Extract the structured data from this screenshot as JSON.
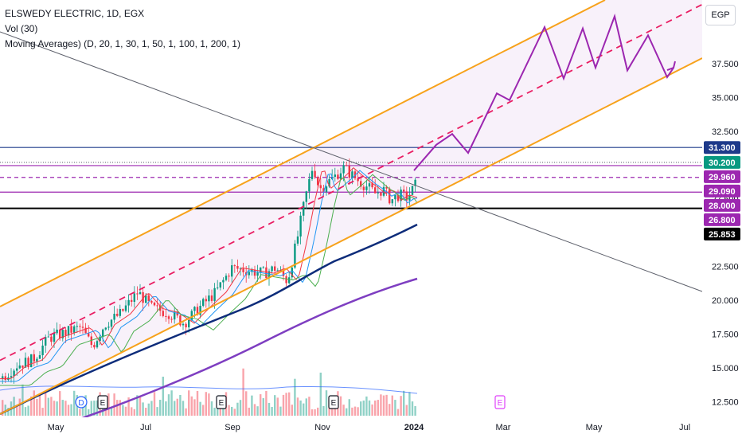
{
  "legend": {
    "symbol_line": "ELSWEDY ELECTRIC, 1D, EGX",
    "vol_line": "Vol (30)",
    "ma_line": "Moving Averages) (D, 20, 1, 30, 1, 50, 1, 100, 1, 200, 1)"
  },
  "currency_button": "EGP",
  "chart_data": {
    "type": "candlestick",
    "symbol": "ELSWEDY ELECTRIC",
    "interval": "1D",
    "exchange": "EGX",
    "currency": "EGP",
    "y_ticks": [
      12.5,
      15,
      17.5,
      20,
      22.5,
      25,
      27.5,
      30,
      32.5,
      35,
      37.5
    ],
    "y_tick_labels": [
      "12.500",
      "15.000",
      "17.500",
      "20.000",
      "22.500",
      "25.000",
      "27.500",
      "30.000",
      "32.500",
      "35.000",
      "37.500"
    ],
    "ylim": [
      11.7,
      41.5
    ],
    "x_labels": [
      "May",
      "Jul",
      "Sep",
      "Nov",
      "2024",
      "Mar",
      "May",
      "Jul"
    ],
    "price_tags": [
      {
        "value": 31.3,
        "label": "31.300",
        "color": "#1e3a8a"
      },
      {
        "value": 30.2,
        "label": "30.200",
        "color": "#089981"
      },
      {
        "value": 29.96,
        "label": "29.960",
        "color": "#9c27b0"
      },
      {
        "value": 29.09,
        "label": "29.090",
        "color": "#9c27b0"
      },
      {
        "value": 28.0,
        "label": "28.000",
        "color": "#9c27b0"
      },
      {
        "value": 26.8,
        "label": "26.800",
        "color": "#9c27b0"
      },
      {
        "value": 25.853,
        "label": "25.853",
        "color": "#000000"
      }
    ],
    "horizontal_lines": [
      {
        "value": 31.3,
        "color": "#1e3a8a",
        "style": "solid"
      },
      {
        "value": 30.2,
        "color": "#787b86",
        "style": "dotted"
      },
      {
        "value": 29.96,
        "color": "#9c27b0",
        "style": "solid"
      },
      {
        "value": 29.09,
        "color": "#9c27b0",
        "style": "dashed"
      },
      {
        "value": 28.0,
        "color": "#9c27b0",
        "style": "solid"
      },
      {
        "value": 26.8,
        "color": "#000000",
        "style": "solid"
      }
    ],
    "projection_path": [
      [
        520,
        29.6
      ],
      [
        548,
        31.5
      ],
      [
        568,
        32.3
      ],
      [
        588,
        30.9
      ],
      [
        624,
        35.3
      ],
      [
        640,
        34.8
      ],
      [
        684,
        40.2
      ],
      [
        708,
        36.4
      ],
      [
        732,
        40.1
      ],
      [
        748,
        37.2
      ],
      [
        772,
        41.0
      ],
      [
        788,
        37.0
      ],
      [
        814,
        39.6
      ],
      [
        838,
        36.5
      ],
      [
        846,
        37.2
      ]
    ],
    "events": [
      {
        "label": "D",
        "x": 102,
        "color": "#2962ff"
      },
      {
        "label": "E",
        "x": 129,
        "color": "#131722"
      },
      {
        "label": "E",
        "x": 278,
        "color": "#131722"
      },
      {
        "label": "E",
        "x": 419,
        "color": "#131722"
      },
      {
        "label": "E",
        "x": 628,
        "color": "#e040fb"
      }
    ],
    "colors": {
      "up": "#089981",
      "down": "#f23645",
      "channel": "#f7a21b",
      "channel_mid": "#e91e63",
      "channel_fill": "#f3e5f5",
      "trendline": "#5d606b",
      "projection": "#9c27b0",
      "ma20": "#f23645",
      "ma30": "#2196f3",
      "ma50": "#4caf50",
      "ma100": "#0d2c7a",
      "ma200": "#7e3ec1"
    }
  }
}
